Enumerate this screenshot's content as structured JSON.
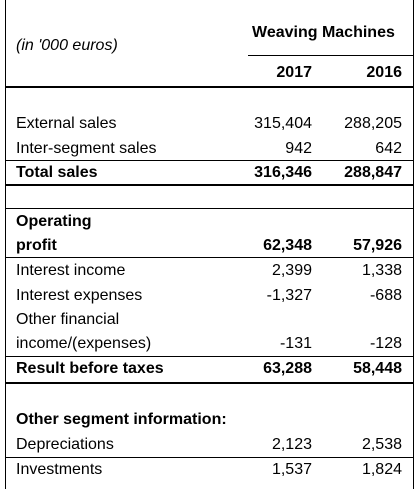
{
  "table": {
    "unit_note": "(in '000 euros)",
    "segment_header": "Weaving Machines",
    "year1": "2017",
    "year2": "2016",
    "rows": [
      {
        "label": "External sales",
        "v1": "315,404",
        "v2": "288,205"
      },
      {
        "label": "Inter-segment sales",
        "v1": "942",
        "v2": "642"
      },
      {
        "label": "Total sales",
        "v1": "316,346",
        "v2": "288,847"
      },
      {
        "label": "Operating",
        "label2": "profit",
        "v1": "62,348",
        "v2": "57,926"
      },
      {
        "label": "Interest income",
        "v1": "2,399",
        "v2": "1,338"
      },
      {
        "label": "Interest expenses",
        "v1": "-1,327",
        "v2": "-688"
      },
      {
        "label": "Other financial",
        "label2": "income/(expenses)",
        "v1": "-131",
        "v2": "-128"
      },
      {
        "label": "Result before taxes",
        "v1": "63,288",
        "v2": "58,448"
      },
      {
        "label": "Other segment information:"
      },
      {
        "label": "Depreciations",
        "v1": "2,123",
        "v2": "2,538"
      },
      {
        "label": "Investments",
        "v1": "1,537",
        "v2": "1,824"
      }
    ]
  }
}
